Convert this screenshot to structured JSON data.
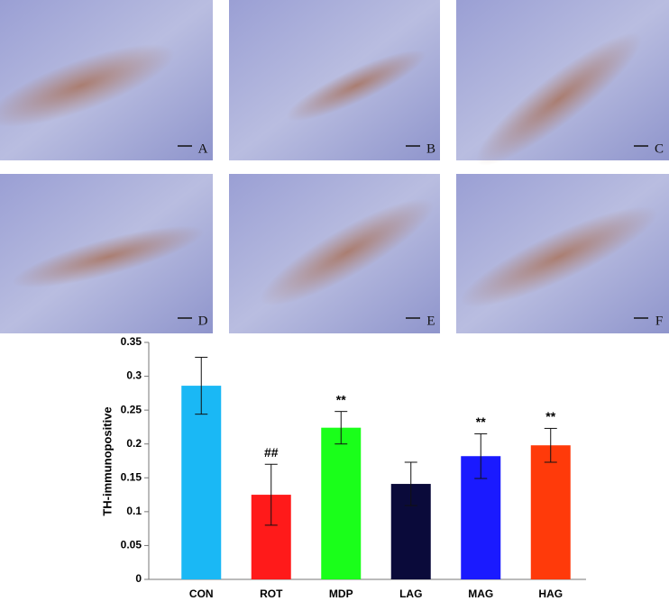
{
  "panels": [
    "A",
    "B",
    "C",
    "D",
    "E",
    "F"
  ],
  "chart_data": {
    "type": "bar",
    "y_label": "TH-immunopositive",
    "categories": [
      "CON",
      "ROT",
      "MDP",
      "LAG",
      "MAG",
      "HAG"
    ],
    "values": [
      0.286,
      0.125,
      0.224,
      0.141,
      0.182,
      0.198
    ],
    "errors": [
      0.042,
      0.045,
      0.024,
      0.032,
      0.033,
      0.025
    ],
    "annotations": [
      null,
      "##",
      "**",
      null,
      "**",
      "**"
    ],
    "colors": [
      "#1ab8f5",
      "#ff1a1a",
      "#1aff1a",
      "#0a0a3a",
      "#1a1aff",
      "#ff3a0a"
    ],
    "ylim": [
      0,
      0.35
    ],
    "yticks": [
      0,
      0.05,
      0.1,
      0.15,
      0.2,
      0.25,
      0.3,
      0.35
    ],
    "grid": false
  }
}
